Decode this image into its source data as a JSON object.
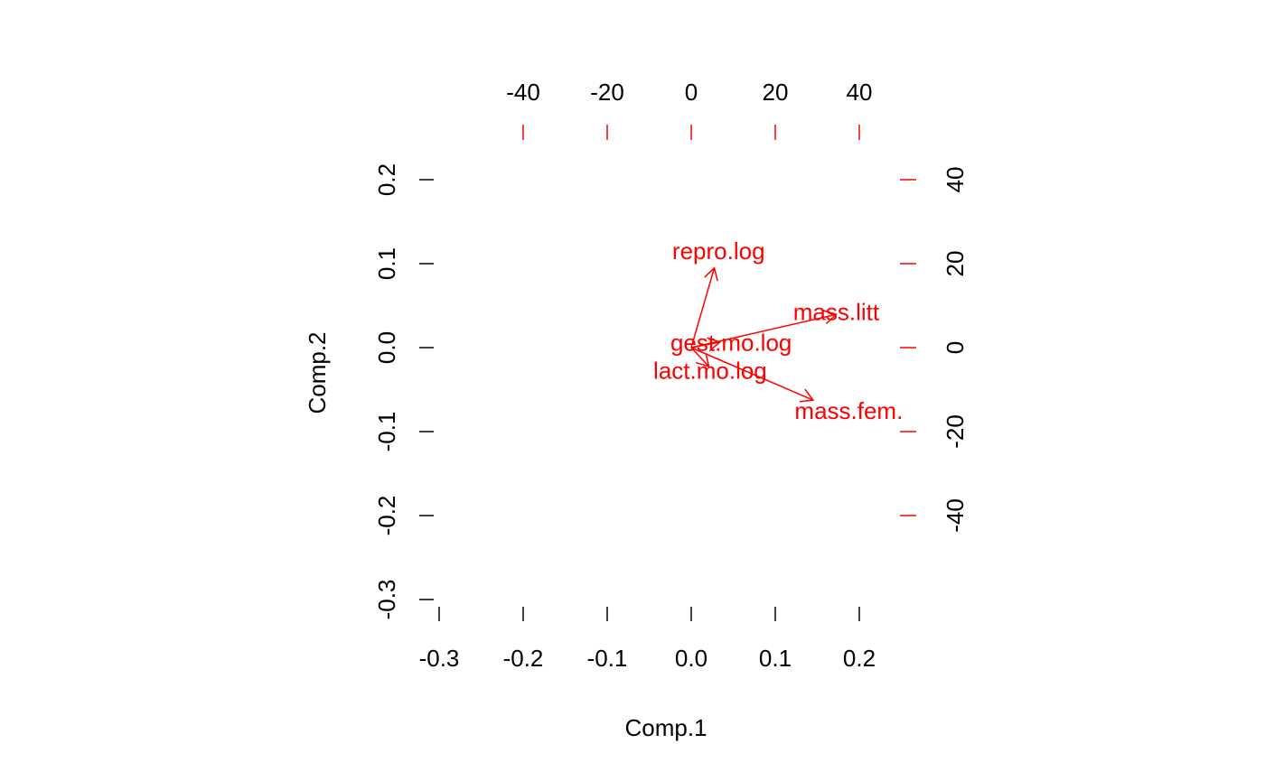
{
  "chart_data": {
    "type": "biplot",
    "xlabel": "Comp.1",
    "ylabel": "Comp.2",
    "bottom_axis": {
      "range": [
        -0.32,
        0.27
      ],
      "ticks": [
        -0.3,
        -0.2,
        -0.1,
        0.0,
        0.1,
        0.2
      ],
      "tick_labels": [
        "-0.3",
        "-0.2",
        "-0.1",
        "0.0",
        "0.1",
        "0.2"
      ]
    },
    "left_axis": {
      "range": [
        -0.3,
        0.2
      ],
      "ticks": [
        -0.3,
        -0.2,
        -0.1,
        0.0,
        0.1,
        0.2
      ],
      "tick_labels": [
        "-0.3",
        "-0.2",
        "-0.1",
        "0.0",
        "0.1",
        "0.2"
      ]
    },
    "top_axis": {
      "ticks": [
        -40,
        -20,
        0,
        20,
        40
      ],
      "tick_labels": [
        "-40",
        "-20",
        "0",
        "20",
        "40"
      ],
      "color": "#ff0000"
    },
    "right_axis": {
      "ticks": [
        -40,
        -20,
        0,
        20,
        40
      ],
      "tick_labels": [
        "-40",
        "-20",
        "0",
        "20",
        "40"
      ],
      "color": "#ff0000"
    },
    "loading_scale": 20,
    "vectors": [
      {
        "name": "repro.log",
        "x": 5.5,
        "y": 19.0,
        "label_x": 6.5,
        "label_y": 23.0
      },
      {
        "name": "mass.litt",
        "x": 34.5,
        "y": 7.9,
        "label_x": 34.5,
        "label_y": 8.5
      },
      {
        "name": "gest.mo.log",
        "x": 6.8,
        "y": 1.3,
        "label_x": 9.5,
        "label_y": 1.2
      },
      {
        "name": "lact.mo.log",
        "x": 4.2,
        "y": -4.5,
        "label_x": 4.5,
        "label_y": -5.5
      },
      {
        "name": "mass.fem.",
        "x": 29.0,
        "y": -12.5,
        "label_x": 37.5,
        "label_y": -15.0
      }
    ],
    "vector_color": "#ff0000"
  }
}
